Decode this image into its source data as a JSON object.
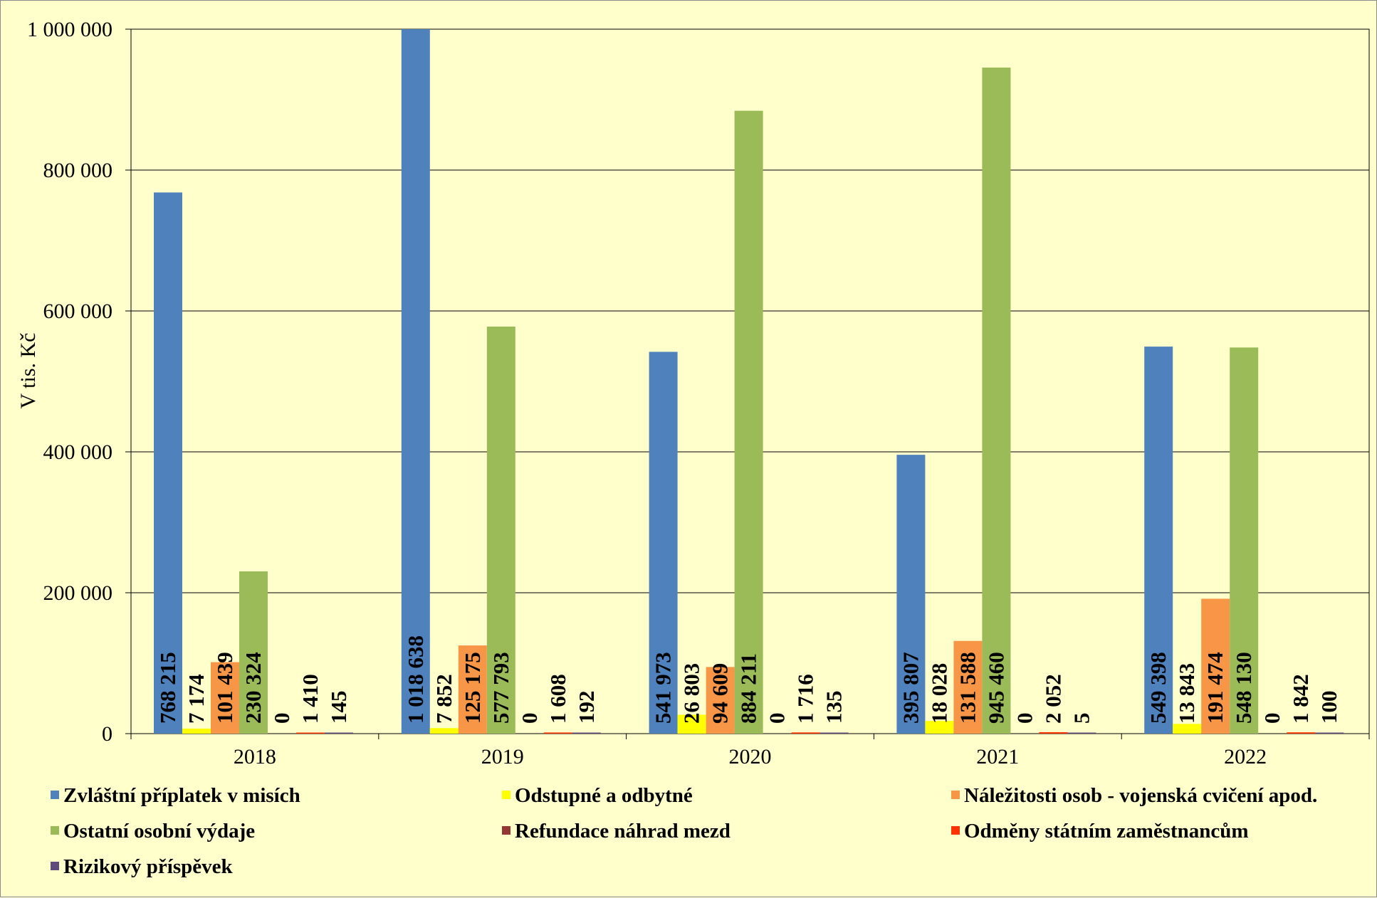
{
  "chart_data": {
    "type": "bar",
    "ylabel": "V tis. Kč",
    "ylim": [
      0,
      1000000
    ],
    "yticks": [
      0,
      200000,
      400000,
      600000,
      800000,
      1000000
    ],
    "ytick_labels": [
      "0",
      "200 000",
      "400 000",
      "600 000",
      "800 000",
      "1 000 000"
    ],
    "grid": true,
    "legend_position": "bottom",
    "categories": [
      "2018",
      "2019",
      "2020",
      "2021",
      "2022"
    ],
    "series": [
      {
        "name": "Zvláštní příplatek v misích",
        "color": "#4f81bd",
        "values": [
          768215,
          1018638,
          541973,
          395807,
          549398
        ],
        "labels": [
          "768 215",
          "1 018 638",
          "541 973",
          "395 807",
          "549 398"
        ]
      },
      {
        "name": "Odstupné a odbytné",
        "color": "#ffff00",
        "values": [
          7174,
          7852,
          26803,
          18028,
          13843
        ],
        "labels": [
          "7 174",
          "7 852",
          "26 803",
          "18 028",
          "13 843"
        ]
      },
      {
        "name": "Náležitosti osob - vojenská cvičení apod.",
        "color": "#f79646",
        "values": [
          101439,
          125175,
          94609,
          131588,
          191474
        ],
        "labels": [
          "101 439",
          "125 175",
          "94 609",
          "131 588",
          "191 474"
        ]
      },
      {
        "name": "Ostatní osobní výdaje",
        "color": "#9bbb59",
        "values": [
          230324,
          577793,
          884211,
          945460,
          548130
        ],
        "labels": [
          "230 324",
          "577 793",
          "884 211",
          "945 460",
          "548 130"
        ]
      },
      {
        "name": "Refundace náhrad mezd",
        "color": "#953735",
        "values": [
          0,
          0,
          0,
          0,
          0
        ],
        "labels": [
          "0",
          "0",
          "0",
          "0",
          "0"
        ]
      },
      {
        "name": "Odměny státním zaměstnancům",
        "color": "#ff3300",
        "values": [
          1410,
          1608,
          1716,
          2052,
          1842
        ],
        "labels": [
          "1 410",
          "1 608",
          "1 716",
          "2 052",
          "1 842"
        ]
      },
      {
        "name": "Rizikový příspěvek",
        "color": "#604a7b",
        "values": [
          145,
          192,
          135,
          5,
          100
        ],
        "labels": [
          "145",
          "192",
          "135",
          "5",
          "100"
        ]
      }
    ]
  }
}
